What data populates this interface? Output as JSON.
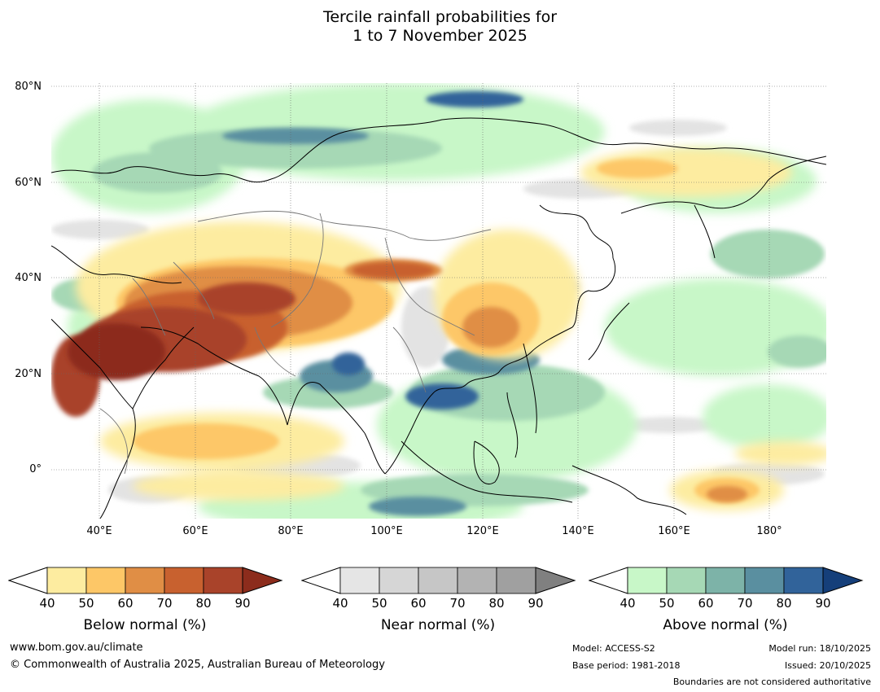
{
  "title": {
    "line1": "Tercile rainfall probabilities for",
    "line2": "1 to 7 November 2025"
  },
  "map": {
    "lat_labels": [
      "80°N",
      "60°N",
      "40°N",
      "20°N",
      "0°"
    ],
    "lon_labels": [
      "40°E",
      "60°E",
      "80°E",
      "100°E",
      "120°E",
      "140°E",
      "160°E",
      "180°"
    ],
    "extent": {
      "lon_min": 30,
      "lon_max": 191,
      "lat_min": -10,
      "lat_max": 81
    }
  },
  "colorbars": [
    {
      "name": "below",
      "title": "Below normal (%)",
      "ticks": [
        "40",
        "50",
        "60",
        "70",
        "80",
        "90"
      ],
      "colors": [
        "#ffffff",
        "#fdeca0",
        "#fdc767",
        "#e08e45",
        "#c8612f",
        "#a9432a",
        "#8c2c1c"
      ]
    },
    {
      "name": "near",
      "title": "Near normal (%)",
      "ticks": [
        "40",
        "50",
        "60",
        "70",
        "80",
        "90"
      ],
      "colors": [
        "#ffffff",
        "#e5e5e5",
        "#d6d6d6",
        "#c6c6c6",
        "#b3b3b3",
        "#a0a0a0",
        "#808080"
      ]
    },
    {
      "name": "above",
      "title": "Above normal (%)",
      "ticks": [
        "40",
        "50",
        "60",
        "70",
        "80",
        "90"
      ],
      "colors": [
        "#ffffff",
        "#c8f7c8",
        "#a6d8b5",
        "#7db3a8",
        "#5a8fa0",
        "#31639a",
        "#153f7a"
      ]
    }
  ],
  "footer": {
    "website": "www.bom.gov.au/climate",
    "copyright": "© Commonwealth of Australia 2025, Australian Bureau of Meteorology",
    "model": "Model: ACCESS-S2",
    "base_period": "Base period: 1981-2018",
    "model_run": "Model run: 18/10/2025",
    "issued": "Issued: 20/10/2025",
    "disclaimer": "Boundaries are not considered authoritative"
  }
}
